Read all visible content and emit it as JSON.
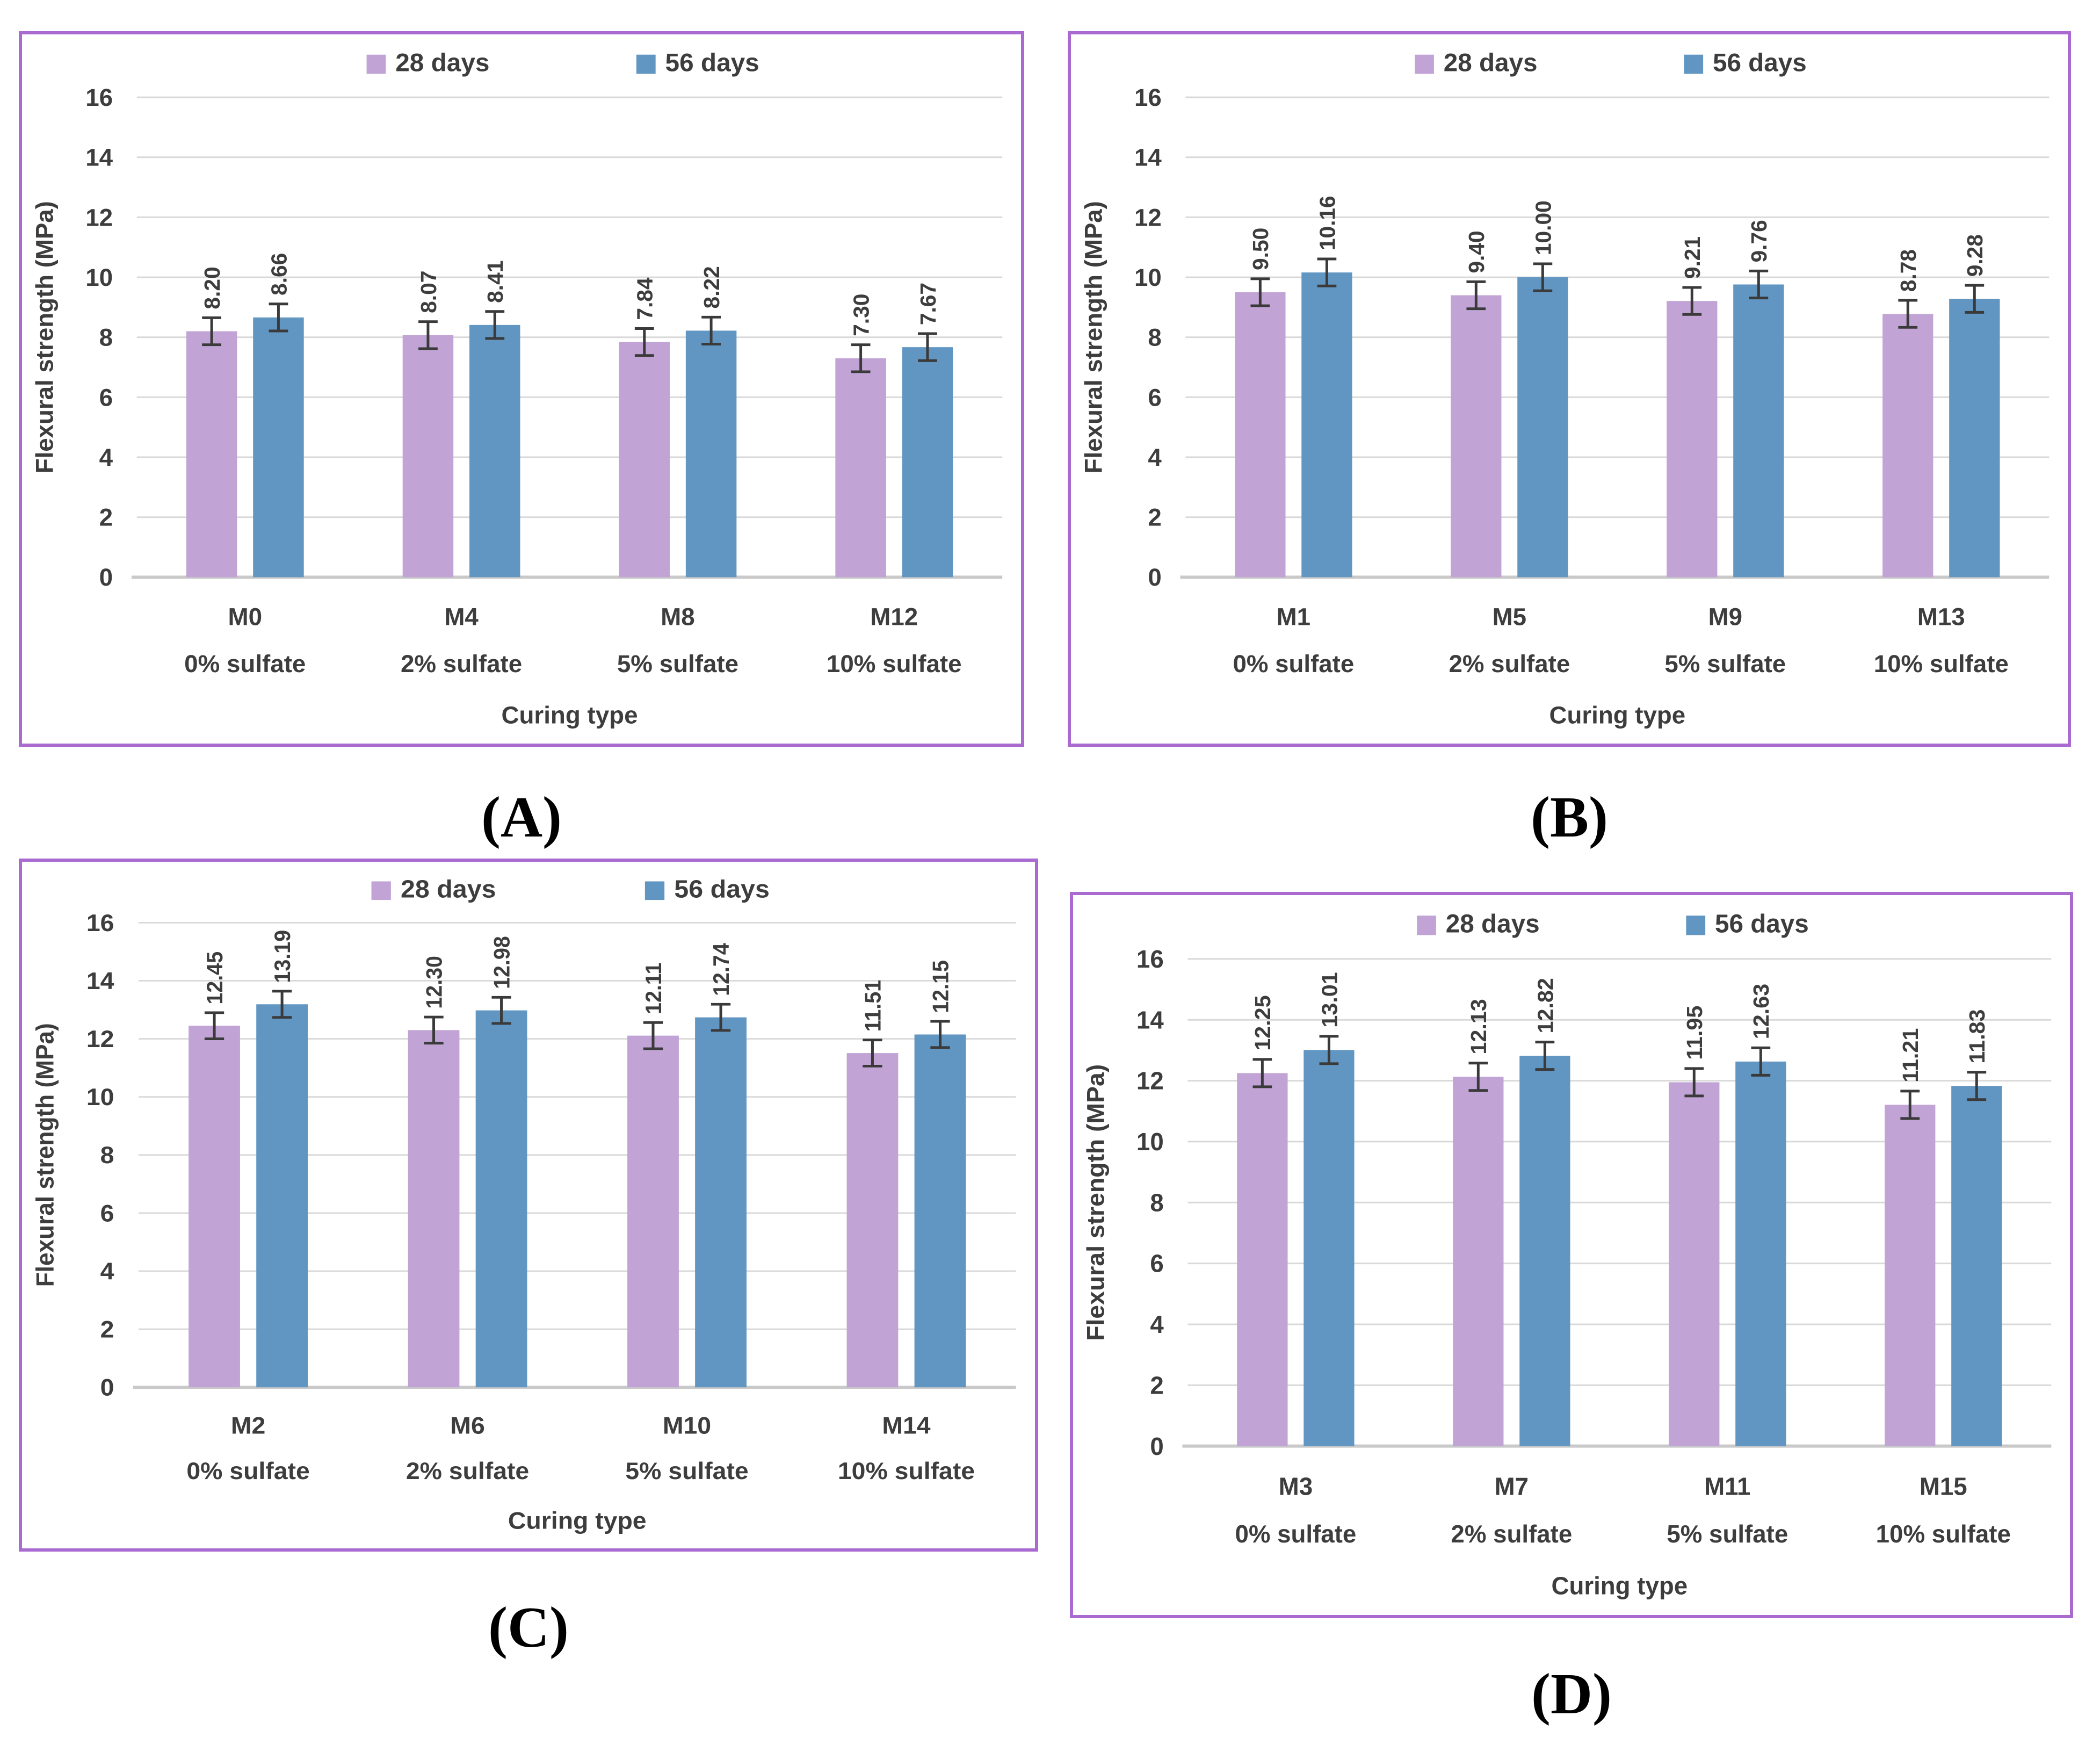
{
  "axes": {
    "y_title": "Flexural strength (MPa)",
    "x_title": "Curing type",
    "y_ticks": [
      0,
      2,
      4,
      6,
      8,
      10,
      12,
      14,
      16
    ],
    "ylim": [
      0,
      16
    ]
  },
  "legend": {
    "series_labels": [
      "28 days",
      "56 days"
    ]
  },
  "colors": {
    "bar_28_days": "#c1a4d5",
    "bar_56_days": "#6296c2",
    "gridline": "#d9d9d9",
    "baseline": "#c9c9c9",
    "text": "#3d3d3d",
    "error_bar": "#3a3a3a",
    "panel_border": "#a96bd0"
  },
  "error_bar_half_height_mpa": 0.45,
  "chart_data": [
    {
      "type": "bar",
      "caption": "(A)",
      "xlabel": "Curing type",
      "ylabel": "Flexural strength (MPa)",
      "ylim": [
        0,
        16
      ],
      "categories": [
        {
          "mix": "M0",
          "sulfate": "0% sulfate"
        },
        {
          "mix": "M4",
          "sulfate": "2% sulfate"
        },
        {
          "mix": "M8",
          "sulfate": "5% sulfate"
        },
        {
          "mix": "M12",
          "sulfate": "10% sulfate"
        }
      ],
      "series": [
        {
          "name": "28 days",
          "values": [
            8.2,
            8.07,
            7.84,
            7.3
          ],
          "labels": [
            "8.20",
            "8.07",
            "7.84",
            "7.30"
          ]
        },
        {
          "name": "56 days",
          "values": [
            8.66,
            8.41,
            8.22,
            7.67
          ],
          "labels": [
            "8.66",
            "8.41",
            "8.22",
            "7.67"
          ]
        }
      ]
    },
    {
      "type": "bar",
      "caption": "(B)",
      "xlabel": "Curing type",
      "ylabel": "Flexural strength (MPa)",
      "ylim": [
        0,
        16
      ],
      "categories": [
        {
          "mix": "M1",
          "sulfate": "0% sulfate"
        },
        {
          "mix": "M5",
          "sulfate": "2% sulfate"
        },
        {
          "mix": "M9",
          "sulfate": "5% sulfate"
        },
        {
          "mix": "M13",
          "sulfate": "10% sulfate"
        }
      ],
      "series": [
        {
          "name": "28 days",
          "values": [
            9.5,
            9.4,
            9.21,
            8.78
          ],
          "labels": [
            "9.50",
            "9.40",
            "9.21",
            "8.78"
          ]
        },
        {
          "name": "56 days",
          "values": [
            10.16,
            10.0,
            9.76,
            9.28
          ],
          "labels": [
            "10.16",
            "10.00",
            "9.76",
            "9.28"
          ]
        }
      ]
    },
    {
      "type": "bar",
      "caption": "(C)",
      "xlabel": "Curing type",
      "ylabel": "Flexural strength (MPa)",
      "ylim": [
        0,
        16
      ],
      "categories": [
        {
          "mix": "M2",
          "sulfate": "0% sulfate"
        },
        {
          "mix": "M6",
          "sulfate": "2% sulfate"
        },
        {
          "mix": "M10",
          "sulfate": "5% sulfate"
        },
        {
          "mix": "M14",
          "sulfate": "10% sulfate"
        }
      ],
      "series": [
        {
          "name": "28 days",
          "values": [
            12.45,
            12.3,
            12.11,
            11.51
          ],
          "labels": [
            "12.45",
            "12.30",
            "12.11",
            "11.51"
          ]
        },
        {
          "name": "56 days",
          "values": [
            13.19,
            12.98,
            12.74,
            12.15
          ],
          "labels": [
            "13.19",
            "12.98",
            "12.74",
            "12.15"
          ]
        }
      ]
    },
    {
      "type": "bar",
      "caption": "(D)",
      "xlabel": "Curing type",
      "ylabel": "Flexural strength (MPa)",
      "ylim": [
        0,
        16
      ],
      "categories": [
        {
          "mix": "M3",
          "sulfate": "0% sulfate"
        },
        {
          "mix": "M7",
          "sulfate": "2% sulfate"
        },
        {
          "mix": "M11",
          "sulfate": "5% sulfate"
        },
        {
          "mix": "M15",
          "sulfate": "10% sulfate"
        }
      ],
      "series": [
        {
          "name": "28 days",
          "values": [
            12.25,
            12.13,
            11.95,
            11.21
          ],
          "labels": [
            "12.25",
            "12.13",
            "11.95",
            "11.21"
          ]
        },
        {
          "name": "56 days",
          "values": [
            13.01,
            12.82,
            12.63,
            11.83
          ],
          "labels": [
            "13.01",
            "12.82",
            "12.63",
            "11.83"
          ]
        }
      ]
    }
  ]
}
